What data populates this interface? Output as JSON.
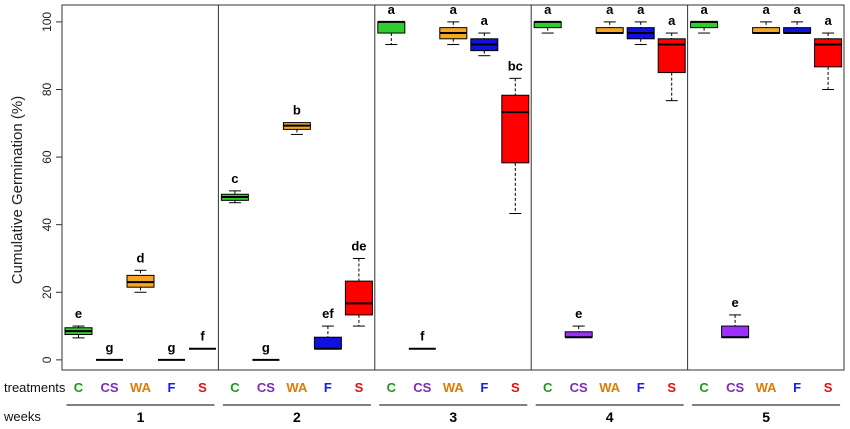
{
  "chart_data": {
    "type": "box",
    "ylabel": "Cumulative Germination (%)",
    "ylim": [
      -3,
      105
    ],
    "yticks": [
      0,
      20,
      40,
      60,
      80,
      100
    ],
    "row_labels": {
      "treatments": "treatments",
      "weeks": "weeks"
    },
    "treatments": [
      {
        "code": "C",
        "color": "#1a9a1a"
      },
      {
        "code": "CS",
        "color": "#7b2db5"
      },
      {
        "code": "WA",
        "color": "#e07b00"
      },
      {
        "code": "F",
        "color": "#1a1aff"
      },
      {
        "code": "S",
        "color": "#e01010"
      }
    ],
    "weeks": [
      {
        "label": "1",
        "boxes": [
          {
            "t": "C",
            "fill": "#2ecc2e",
            "min": 6.5,
            "q1": 7.5,
            "median": 8.5,
            "q3": 9.5,
            "max": 10,
            "letter": "e"
          },
          {
            "t": "CS",
            "fill": "#9b30ff",
            "min": 0,
            "q1": 0,
            "median": 0,
            "q3": 0,
            "max": 0,
            "letter": "g"
          },
          {
            "t": "WA",
            "fill": "#f5a623",
            "min": 20,
            "q1": 21.5,
            "median": 23,
            "q3": 25,
            "max": 26.5,
            "letter": "d"
          },
          {
            "t": "F",
            "fill": "#1010e0",
            "min": 0,
            "q1": 0,
            "median": 0,
            "q3": 0,
            "max": 0,
            "letter": "g"
          },
          {
            "t": "S",
            "fill": "#ff0000",
            "min": 3.3,
            "q1": 3.3,
            "median": 3.3,
            "q3": 3.3,
            "max": 3.3,
            "letter": "f"
          }
        ]
      },
      {
        "label": "2",
        "boxes": [
          {
            "t": "C",
            "fill": "#2ecc2e",
            "min": 46.5,
            "q1": 47.2,
            "median": 48.2,
            "q3": 49,
            "max": 50,
            "letter": "c"
          },
          {
            "t": "CS",
            "fill": "#9b30ff",
            "min": 0,
            "q1": 0,
            "median": 0,
            "q3": 0,
            "max": 0,
            "letter": "g"
          },
          {
            "t": "WA",
            "fill": "#f5a623",
            "min": 66.7,
            "q1": 68.2,
            "median": 69.3,
            "q3": 70.2,
            "max": 70.2,
            "letter": "b"
          },
          {
            "t": "F",
            "fill": "#1010e0",
            "min": 3.3,
            "q1": 3.3,
            "median": 3.3,
            "q3": 6.7,
            "max": 10,
            "letter": "ef"
          },
          {
            "t": "S",
            "fill": "#ff0000",
            "min": 10,
            "q1": 13.3,
            "median": 16.7,
            "q3": 23.3,
            "max": 30,
            "letter": "de"
          }
        ]
      },
      {
        "label": "3",
        "boxes": [
          {
            "t": "C",
            "fill": "#2ecc2e",
            "min": 93.3,
            "q1": 96.7,
            "median": 100,
            "q3": 100,
            "max": 100,
            "letter": "a"
          },
          {
            "t": "CS",
            "fill": "#9b30ff",
            "min": 3.3,
            "q1": 3.3,
            "median": 3.3,
            "q3": 3.3,
            "max": 3.3,
            "letter": "f"
          },
          {
            "t": "WA",
            "fill": "#f5a623",
            "min": 93.3,
            "q1": 95,
            "median": 96.7,
            "q3": 98.3,
            "max": 100,
            "letter": "a"
          },
          {
            "t": "F",
            "fill": "#1010e0",
            "min": 90,
            "q1": 91.5,
            "median": 93.3,
            "q3": 95,
            "max": 96.7,
            "letter": "a"
          },
          {
            "t": "S",
            "fill": "#ff0000",
            "min": 43.3,
            "q1": 58.3,
            "median": 73.3,
            "q3": 78.3,
            "max": 83.3,
            "letter": "bc"
          }
        ]
      },
      {
        "label": "4",
        "boxes": [
          {
            "t": "C",
            "fill": "#2ecc2e",
            "min": 96.7,
            "q1": 98.3,
            "median": 100,
            "q3": 100,
            "max": 100,
            "letter": "a"
          },
          {
            "t": "CS",
            "fill": "#9b30ff",
            "min": 6.7,
            "q1": 6.7,
            "median": 6.7,
            "q3": 8.3,
            "max": 10,
            "letter": "e"
          },
          {
            "t": "WA",
            "fill": "#f5a623",
            "min": 96.7,
            "q1": 96.7,
            "median": 96.7,
            "q3": 98.3,
            "max": 100,
            "letter": "a"
          },
          {
            "t": "F",
            "fill": "#1010e0",
            "min": 93.3,
            "q1": 95,
            "median": 96.7,
            "q3": 98.3,
            "max": 100,
            "letter": "a"
          },
          {
            "t": "S",
            "fill": "#ff0000",
            "min": 76.7,
            "q1": 85,
            "median": 93.3,
            "q3": 95,
            "max": 96.7,
            "letter": "a"
          }
        ]
      },
      {
        "label": "5",
        "boxes": [
          {
            "t": "C",
            "fill": "#2ecc2e",
            "min": 96.7,
            "q1": 98.3,
            "median": 100,
            "q3": 100,
            "max": 100,
            "letter": "a"
          },
          {
            "t": "CS",
            "fill": "#9b30ff",
            "min": 6.7,
            "q1": 6.7,
            "median": 6.7,
            "q3": 10,
            "max": 13.3,
            "letter": "e"
          },
          {
            "t": "WA",
            "fill": "#f5a623",
            "min": 96.7,
            "q1": 96.7,
            "median": 96.7,
            "q3": 98.3,
            "max": 100,
            "letter": "a"
          },
          {
            "t": "F",
            "fill": "#1010e0",
            "min": 96.7,
            "q1": 96.7,
            "median": 96.7,
            "q3": 98.3,
            "max": 100,
            "letter": "a"
          },
          {
            "t": "S",
            "fill": "#ff0000",
            "min": 80,
            "q1": 86.7,
            "median": 93.3,
            "q3": 95,
            "max": 96.7,
            "letter": "a"
          }
        ]
      }
    ]
  }
}
